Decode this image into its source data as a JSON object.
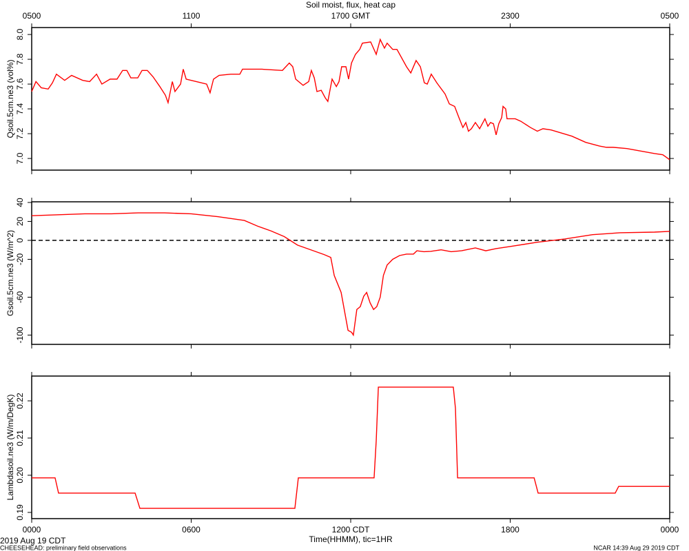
{
  "date_label": "2019 Aug 19 CDT",
  "footer_left": "CHEESEHEAD: preliminary field observations",
  "footer_right": "NCAR 14:39 Aug 29 2019 CDT",
  "chart_data": [
    {
      "type": "line",
      "title": "Soil moist, flux, heat cap",
      "ylabel": "Qsoil.5cm.ne3 (vol%)",
      "color": "#ff0000",
      "xlim": [
        0,
        24
      ],
      "ylim": [
        6.906,
        8.056
      ],
      "xticks": [
        {
          "value": 0,
          "label": "0500"
        },
        {
          "value": 6,
          "label": "1100"
        },
        {
          "value": 12,
          "label": "1700 GMT"
        },
        {
          "value": 18,
          "label": "2300"
        },
        {
          "value": 24,
          "label": "0500"
        }
      ],
      "yticks": [
        {
          "value": 7,
          "label": "7.0"
        },
        7.2,
        7.4,
        7.6,
        7.8,
        {
          "value": 8,
          "label": "8.0"
        }
      ],
      "x": [
        0.0,
        0.16,
        0.36,
        0.62,
        0.78,
        0.93,
        1.24,
        1.5,
        1.92,
        2.18,
        2.44,
        2.64,
        2.95,
        3.21,
        3.42,
        3.58,
        3.73,
        3.99,
        4.15,
        4.35,
        4.56,
        4.82,
        5.03,
        5.13,
        5.29,
        5.39,
        5.6,
        5.7,
        5.81,
        6.19,
        6.58,
        6.71,
        6.84,
        7.05,
        7.49,
        7.83,
        7.93,
        8.66,
        9.43,
        9.69,
        9.82,
        9.93,
        10.21,
        10.42,
        10.52,
        10.63,
        10.73,
        10.89,
        11.04,
        11.14,
        11.3,
        11.46,
        11.56,
        11.66,
        11.82,
        11.92,
        12.03,
        12.18,
        12.34,
        12.44,
        12.75,
        12.96,
        13.11,
        13.27,
        13.37,
        13.58,
        13.74,
        14.1,
        14.26,
        14.46,
        14.62,
        14.77,
        14.88,
        15.03,
        15.24,
        15.55,
        15.71,
        15.91,
        16.07,
        16.22,
        16.33,
        16.43,
        16.54,
        16.69,
        16.85,
        17.05,
        17.16,
        17.26,
        17.37,
        17.47,
        17.57,
        17.68,
        17.73,
        17.83,
        17.88,
        18.19,
        18.4,
        18.76,
        19.02,
        19.23,
        19.54,
        20.32,
        20.84,
        21.36,
        21.62,
        21.87,
        22.39,
        22.91,
        23.43,
        23.74,
        24.0
      ],
      "values": [
        7.54,
        7.62,
        7.57,
        7.56,
        7.61,
        7.68,
        7.63,
        7.67,
        7.63,
        7.62,
        7.68,
        7.6,
        7.64,
        7.64,
        7.71,
        7.71,
        7.65,
        7.65,
        7.71,
        7.71,
        7.66,
        7.58,
        7.51,
        7.45,
        7.62,
        7.54,
        7.6,
        7.72,
        7.64,
        7.62,
        7.6,
        7.53,
        7.64,
        7.67,
        7.68,
        7.68,
        7.72,
        7.72,
        7.71,
        7.77,
        7.74,
        7.64,
        7.59,
        7.62,
        7.71,
        7.65,
        7.54,
        7.55,
        7.49,
        7.46,
        7.64,
        7.58,
        7.62,
        7.74,
        7.74,
        7.64,
        7.77,
        7.84,
        7.88,
        7.93,
        7.94,
        7.84,
        7.96,
        7.89,
        7.93,
        7.88,
        7.88,
        7.74,
        7.69,
        7.79,
        7.74,
        7.61,
        7.6,
        7.68,
        7.61,
        7.52,
        7.44,
        7.42,
        7.33,
        7.25,
        7.29,
        7.22,
        7.24,
        7.29,
        7.24,
        7.32,
        7.26,
        7.29,
        7.28,
        7.19,
        7.28,
        7.33,
        7.42,
        7.4,
        7.32,
        7.32,
        7.3,
        7.25,
        7.22,
        7.24,
        7.23,
        7.18,
        7.13,
        7.1,
        7.09,
        7.09,
        7.08,
        7.06,
        7.04,
        7.03,
        6.99
      ]
    },
    {
      "type": "line",
      "ylabel": "Gsoil.5cm.ne3 (W/m^2)",
      "color": "#ff0000",
      "zero_line": true,
      "xlim": [
        0,
        24
      ],
      "ylim": [
        -109.8,
        40.7
      ],
      "yticks": [
        40,
        20,
        0,
        -20,
        -60,
        -100
      ],
      "x": [
        0,
        1,
        2,
        3,
        4,
        5,
        6,
        7,
        8,
        8.5,
        9,
        9.5,
        10,
        10.5,
        11,
        11.25,
        11.38,
        11.64,
        11.9,
        12.03,
        12.1,
        12.23,
        12.36,
        12.49,
        12.6,
        12.73,
        12.86,
        12.98,
        13.11,
        13.23,
        13.37,
        13.58,
        13.84,
        14.1,
        14.36,
        14.49,
        14.75,
        15.01,
        15.4,
        15.78,
        16.17,
        16.69,
        17.08,
        17.47,
        17.99,
        19.02,
        20.06,
        21.1,
        22.13,
        23.43,
        24.0
      ],
      "values": [
        26,
        27,
        28,
        28,
        29,
        29,
        28,
        25,
        21,
        15,
        10,
        4,
        -5,
        -10,
        -15,
        -18,
        -37,
        -55,
        -95,
        -97,
        -100,
        -73,
        -70,
        -59,
        -55,
        -66,
        -73,
        -70,
        -60,
        -37,
        -26,
        -20,
        -16,
        -14.5,
        -14.5,
        -11,
        -12,
        -11.6,
        -10,
        -12,
        -11,
        -8,
        -11,
        -8.7,
        -6.5,
        -2,
        1.5,
        6,
        8,
        8.7,
        9.5
      ]
    },
    {
      "type": "line",
      "ylabel": "Lambdasoil.ne3 (W/m/DegK)",
      "xlabel": "Time(HHMM), tic=1HR",
      "color": "#ff0000",
      "xlim": [
        0,
        24
      ],
      "ylim": [
        0.18833,
        0.22667
      ],
      "xticks": [
        {
          "value": 0,
          "label": "0000"
        },
        {
          "value": 6,
          "label": "0600"
        },
        {
          "value": 12,
          "label": "1200 CDT"
        },
        {
          "value": 18,
          "label": "1800"
        },
        {
          "value": 24,
          "label": "0000"
        }
      ],
      "yticks": [
        0.19,
        {
          "value": 0.2,
          "label": "0.20"
        },
        0.21,
        0.22
      ],
      "x": [
        0,
        0.88,
        1.01,
        3.89,
        4.07,
        9.9,
        10.03,
        12.88,
        12.96,
        13.04,
        15.86,
        15.94,
        16.02,
        18.9,
        19.05,
        21.95,
        22.08,
        24
      ],
      "values": [
        0.1993,
        0.1993,
        0.1952,
        0.1952,
        0.1911,
        0.1911,
        0.1993,
        0.1993,
        0.2093,
        0.2237,
        0.2237,
        0.218,
        0.1993,
        0.1993,
        0.1952,
        0.1952,
        0.197,
        0.197
      ]
    }
  ]
}
